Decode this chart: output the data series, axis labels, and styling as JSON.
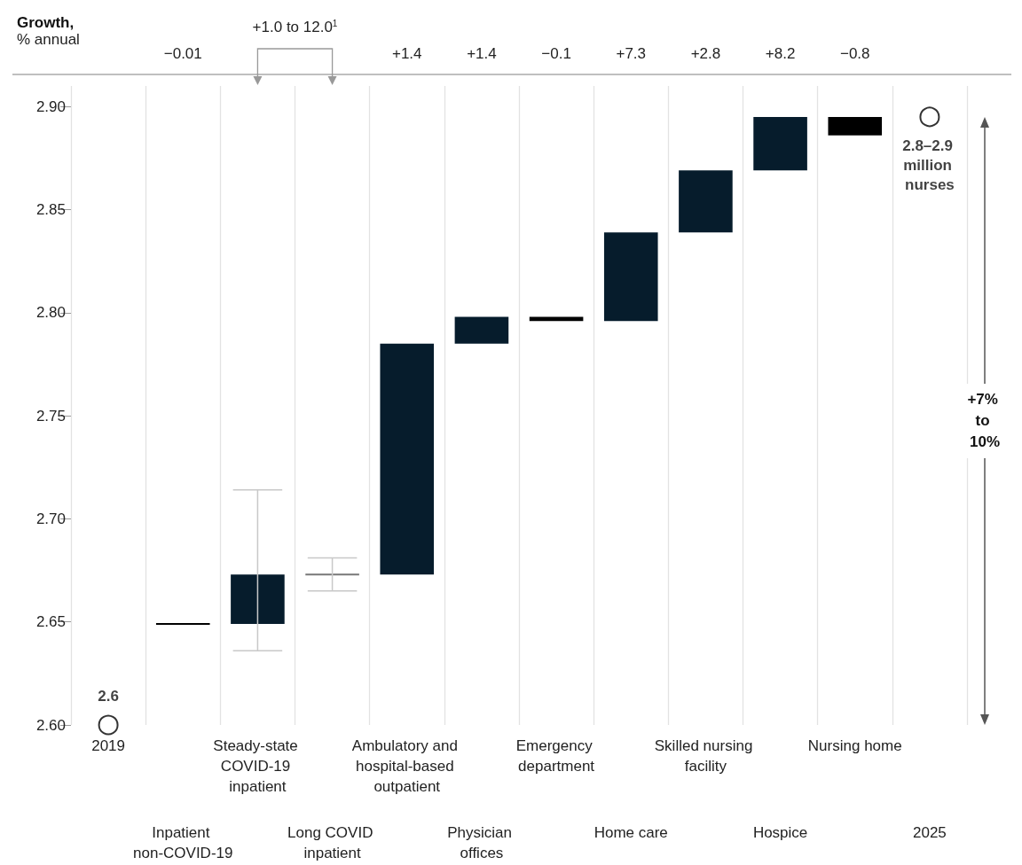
{
  "chart_data": {
    "type": "bar",
    "title": "Growth,",
    "subtitle": "% annual",
    "categories": [
      "2019",
      "Inpatient non-COVID-19",
      "Steady-state COVID-19 inpatient",
      "Long COVID inpatient",
      "Ambulatory and hospital-based outpatient",
      "Physician offices",
      "Emergency department",
      "Home care",
      "Skilled nursing facility",
      "Hospice",
      "Nursing home",
      "2025"
    ],
    "ylim": [
      2.6,
      2.91
    ],
    "yticks": [
      {
        "value": 2.6,
        "label": "2.60"
      },
      2.65,
      {
        "value": 2.7,
        "label": "2.70"
      },
      2.75,
      {
        "value": 2.8,
        "label": "2.80"
      },
      2.85,
      {
        "value": 2.9,
        "label": "2.90"
      }
    ],
    "grid": "x",
    "series": [
      {
        "values": [
          null,
          0,
          0.024,
          0,
          0.112,
          0.013,
          -0.002,
          0.043,
          0.03,
          0.026,
          -0.009,
          null
        ],
        "base": [
          null,
          2.649,
          2.649,
          2.673,
          2.673,
          2.785,
          2.798,
          2.796,
          2.839,
          2.869,
          2.895,
          null
        ],
        "colors": [
          null,
          "#000000",
          "#061c2c",
          "#777777",
          "#061c2c",
          "#061c2c",
          "#000000",
          "#061c2c",
          "#061c2c",
          "#061c2c",
          "#000000",
          null
        ],
        "errors": [
          null,
          null,
          [
            2.636,
            2.714
          ],
          [
            2.665,
            2.681
          ],
          null,
          null,
          null,
          null,
          null,
          null,
          null,
          null
        ]
      },
      {
        "type": "scatter",
        "values": [
          2.6,
          null,
          null,
          null,
          null,
          null,
          null,
          null,
          null,
          null,
          null,
          2.895
        ],
        "value_labels": [
          "2.6",
          null,
          null,
          null,
          null,
          null,
          null,
          null,
          null,
          null,
          null,
          "2.8–2.9 million nurses"
        ],
        "marker": "circle",
        "color": "#000000"
      }
    ],
    "annotations": [
      "+1.0 to 12.0$^{1}$",
      "+7% to 10%",
      "−0.01",
      "+1.4",
      "+1.4",
      "−0.1",
      "+7.3",
      "+2.8",
      "+8.2",
      "−0.8"
    ]
  }
}
